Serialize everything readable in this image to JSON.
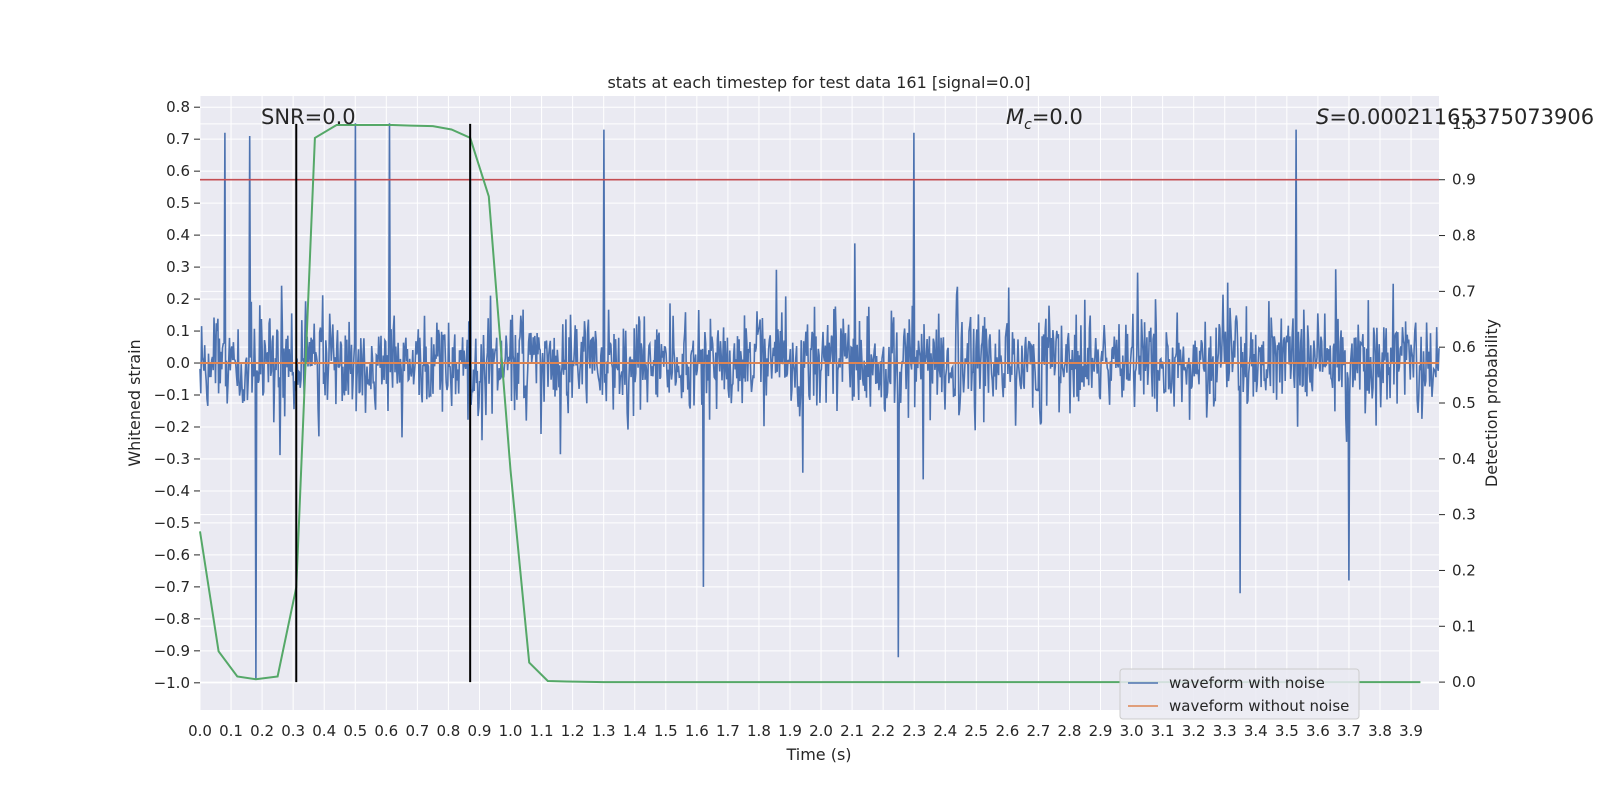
{
  "chart_data": {
    "type": "line",
    "title": "stats at each timestep for test data 161 [signal=0.0]",
    "xlabel": "Time (s)",
    "ylabel": "Whitened strain",
    "y2label": "Detection probability",
    "xlim": [
      0.0,
      3.99
    ],
    "ylim": [
      -1.085,
      0.835
    ],
    "y2lim": [
      -0.05,
      1.05
    ],
    "x_ticks": [
      "0.0",
      "0.1",
      "0.2",
      "0.3",
      "0.4",
      "0.5",
      "0.6",
      "0.7",
      "0.8",
      "0.9",
      "1.0",
      "1.1",
      "1.2",
      "1.3",
      "1.4",
      "1.5",
      "1.6",
      "1.7",
      "1.8",
      "1.9",
      "2.0",
      "2.1",
      "2.2",
      "2.3",
      "2.4",
      "2.5",
      "2.6",
      "2.7",
      "2.8",
      "2.9",
      "3.0",
      "3.1",
      "3.2",
      "3.3",
      "3.4",
      "3.5",
      "3.6",
      "3.7",
      "3.8",
      "3.9"
    ],
    "y_ticks": [
      "0.8",
      "0.7",
      "0.6",
      "0.5",
      "0.4",
      "0.3",
      "0.2",
      "0.1",
      "0.0",
      "−0.1",
      "−0.2",
      "−0.3",
      "−0.4",
      "−0.5",
      "−0.6",
      "−0.7",
      "−0.8",
      "−0.9",
      "−1.0"
    ],
    "y2_ticks": [
      "1.0",
      "0.9",
      "0.8",
      "0.7",
      "0.6",
      "0.5",
      "0.4",
      "0.3",
      "0.2",
      "0.1",
      "0.0"
    ],
    "grid": true,
    "legend_position": "lower-right",
    "annotations": {
      "snr": "SNR=0.0",
      "mc_symbol": "M",
      "mc_sub": "c",
      "mc_value": "=0.0",
      "s_symbol": "S",
      "s_value": "=0.00021165375073906"
    },
    "series": [
      {
        "name": "waveform with noise",
        "color": "#4c72b0",
        "style": "dense noise, sampled; amplitude roughly within ±0.45 with spikes to +0.75 and −0.99",
        "spikes": [
          [
            0.08,
            0.72
          ],
          [
            0.16,
            0.71
          ],
          [
            0.18,
            -0.99
          ],
          [
            0.5,
            0.75
          ],
          [
            0.61,
            0.75
          ],
          [
            0.87,
            0.63
          ],
          [
            1.3,
            0.73
          ],
          [
            1.62,
            -0.7
          ],
          [
            2.25,
            -0.92
          ],
          [
            2.3,
            0.72
          ],
          [
            3.35,
            -0.72
          ],
          [
            3.53,
            0.73
          ],
          [
            3.7,
            -0.68
          ]
        ]
      },
      {
        "name": "waveform without noise",
        "color": "#dd8452",
        "x": [
          0.0,
          3.99
        ],
        "y": [
          0.0,
          0.0
        ]
      },
      {
        "color": "#55a868",
        "axis": "right",
        "x": [
          0.0,
          0.06,
          0.12,
          0.18,
          0.25,
          0.31,
          0.37,
          0.44,
          0.5,
          0.56,
          0.62,
          0.68,
          0.75,
          0.81,
          0.87,
          0.93,
          1.0,
          1.06,
          1.12,
          1.18,
          1.3,
          2.0,
          3.0,
          3.93
        ],
        "y": [
          0.27,
          0.055,
          0.01,
          0.005,
          0.01,
          0.17,
          0.975,
          0.998,
          0.998,
          0.998,
          0.998,
          0.997,
          0.996,
          0.99,
          0.975,
          0.87,
          0.38,
          0.035,
          0.002,
          0.001,
          0.0,
          0.0,
          0.0,
          0.0
        ]
      }
    ],
    "reference_lines": {
      "hline_right_axis": {
        "value": 0.9,
        "color": "#c44e52"
      },
      "vlines_x": [
        0.31,
        0.87
      ],
      "vline_color": "#000000",
      "vline_range_right_axis": [
        0.0,
        1.0
      ]
    }
  }
}
